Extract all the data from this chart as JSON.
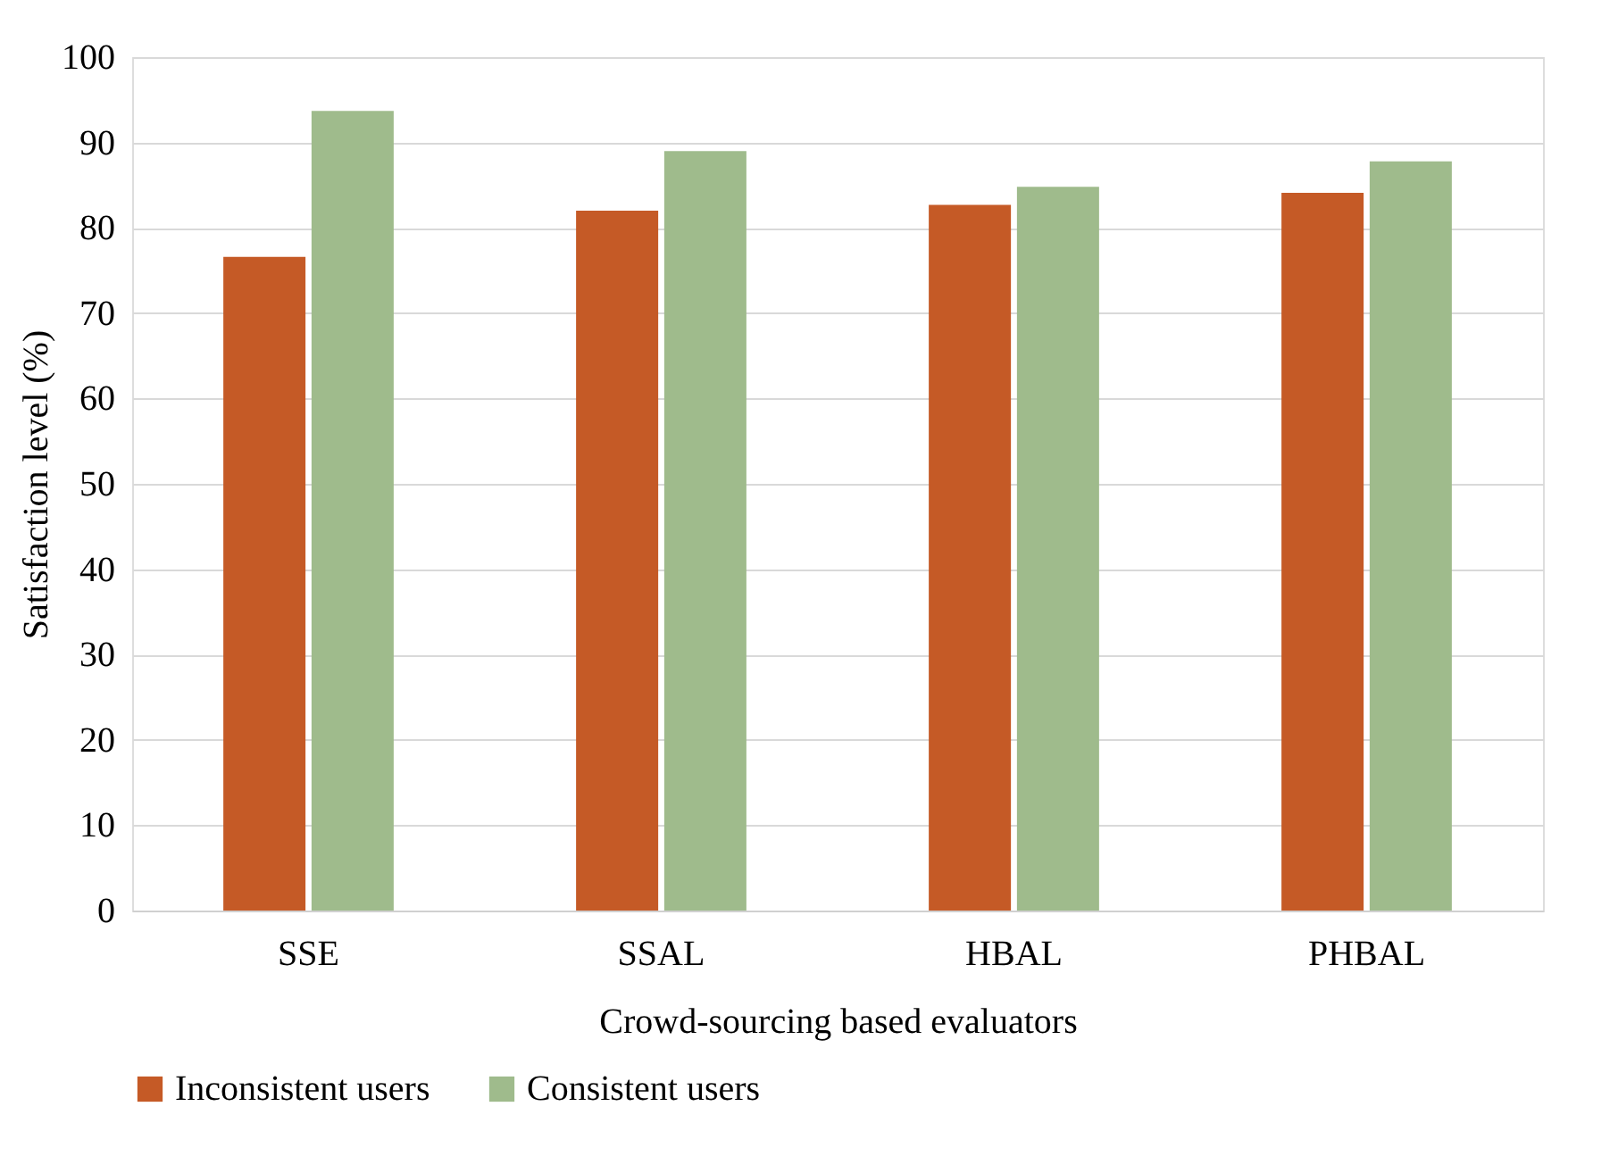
{
  "chart_data": {
    "type": "bar",
    "xlabel": "Crowd-sourcing based evaluators",
    "ylabel": "Satisfaction  level (%)",
    "categories": [
      "SSE",
      "SSAL",
      "HBAL",
      "PHBAL"
    ],
    "series": [
      {
        "name": "Inconsistent users",
        "color": "#c55a26",
        "values": [
          76.6,
          82.0,
          82.7,
          84.1
        ]
      },
      {
        "name": "Consistent users",
        "color": "#9fbb8c",
        "values": [
          93.7,
          89.0,
          84.8,
          87.8
        ]
      }
    ],
    "ylim": [
      0,
      100
    ],
    "yticks": [
      0,
      10,
      20,
      30,
      40,
      50,
      60,
      70,
      80,
      90,
      100
    ],
    "grid": "y",
    "legend": "bottom"
  }
}
